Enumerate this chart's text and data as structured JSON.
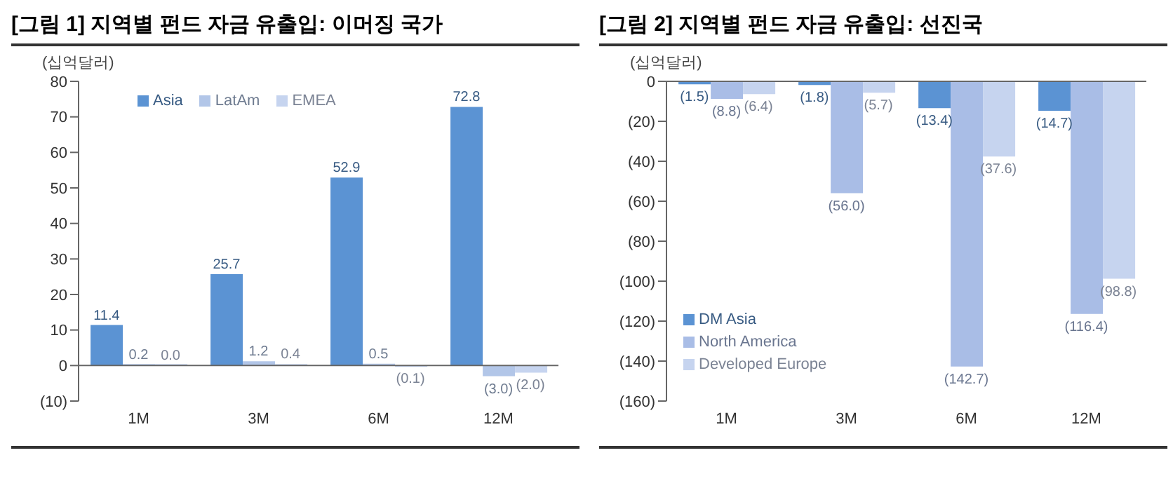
{
  "chart_data": [
    {
      "type": "bar",
      "title": "[그림 1] 지역별 펀드 자금 유출입: 이머징 국가",
      "ylabel": "(십억달러)",
      "categories": [
        "1M",
        "3M",
        "6M",
        "12M"
      ],
      "series": [
        {
          "name": "Asia",
          "color": "#5b93d3",
          "values": [
            11.4,
            25.7,
            52.9,
            72.8
          ],
          "value_labels": [
            "11.4",
            "25.7",
            "52.9",
            "72.8"
          ]
        },
        {
          "name": "LatAm",
          "color": "#b2c6e8",
          "values": [
            0.2,
            1.2,
            0.5,
            -3.0
          ],
          "value_labels": [
            "0.2",
            "1.2",
            "0.5",
            "(3.0)"
          ]
        },
        {
          "name": "EMEA",
          "color": "#c6d4ef",
          "values": [
            0.0,
            0.4,
            -0.1,
            -2.0
          ],
          "value_labels": [
            "0.0",
            "0.4",
            "(0.1)",
            "(2.0)"
          ]
        }
      ],
      "ylim": [
        -10,
        80
      ],
      "yticks": [
        {
          "value": -10,
          "label": "(10)"
        },
        0,
        10,
        20,
        30,
        40,
        50,
        60,
        70,
        80
      ],
      "legend": "top"
    },
    {
      "type": "bar",
      "title": "[그림 2] 지역별 펀드 자금 유출입: 선진국",
      "ylabel": "(십억달러)",
      "categories": [
        "1M",
        "3M",
        "6M",
        "12M"
      ],
      "series": [
        {
          "name": "DM Asia",
          "color": "#5b93d3",
          "values": [
            -1.5,
            -1.8,
            -13.4,
            -14.7
          ],
          "value_labels": [
            "(1.5)",
            "(1.8)",
            "(13.4)",
            "(14.7)"
          ]
        },
        {
          "name": "North America",
          "color": "#a9bde6",
          "values": [
            -8.8,
            -56.0,
            -142.7,
            -116.4
          ],
          "value_labels": [
            "(8.8)",
            "(56.0)",
            "(142.7)",
            "(116.4)"
          ]
        },
        {
          "name": "Developed Europe",
          "color": "#c6d4ef",
          "values": [
            -6.4,
            -5.7,
            -37.6,
            -98.8
          ],
          "value_labels": [
            "(6.4)",
            "(5.7)",
            "(37.6)",
            "(98.8)"
          ]
        }
      ],
      "ylim": [
        -160,
        0
      ],
      "yticks": [
        0,
        {
          "value": -20,
          "label": "(20)"
        },
        {
          "value": -40,
          "label": "(40)"
        },
        {
          "value": -60,
          "label": "(60)"
        },
        {
          "value": -80,
          "label": "(80)"
        },
        {
          "value": -100,
          "label": "(100)"
        },
        {
          "value": -120,
          "label": "(120)"
        },
        {
          "value": -140,
          "label": "(140)"
        },
        {
          "value": -160,
          "label": "(160)"
        }
      ],
      "legend": "bottom left"
    }
  ]
}
